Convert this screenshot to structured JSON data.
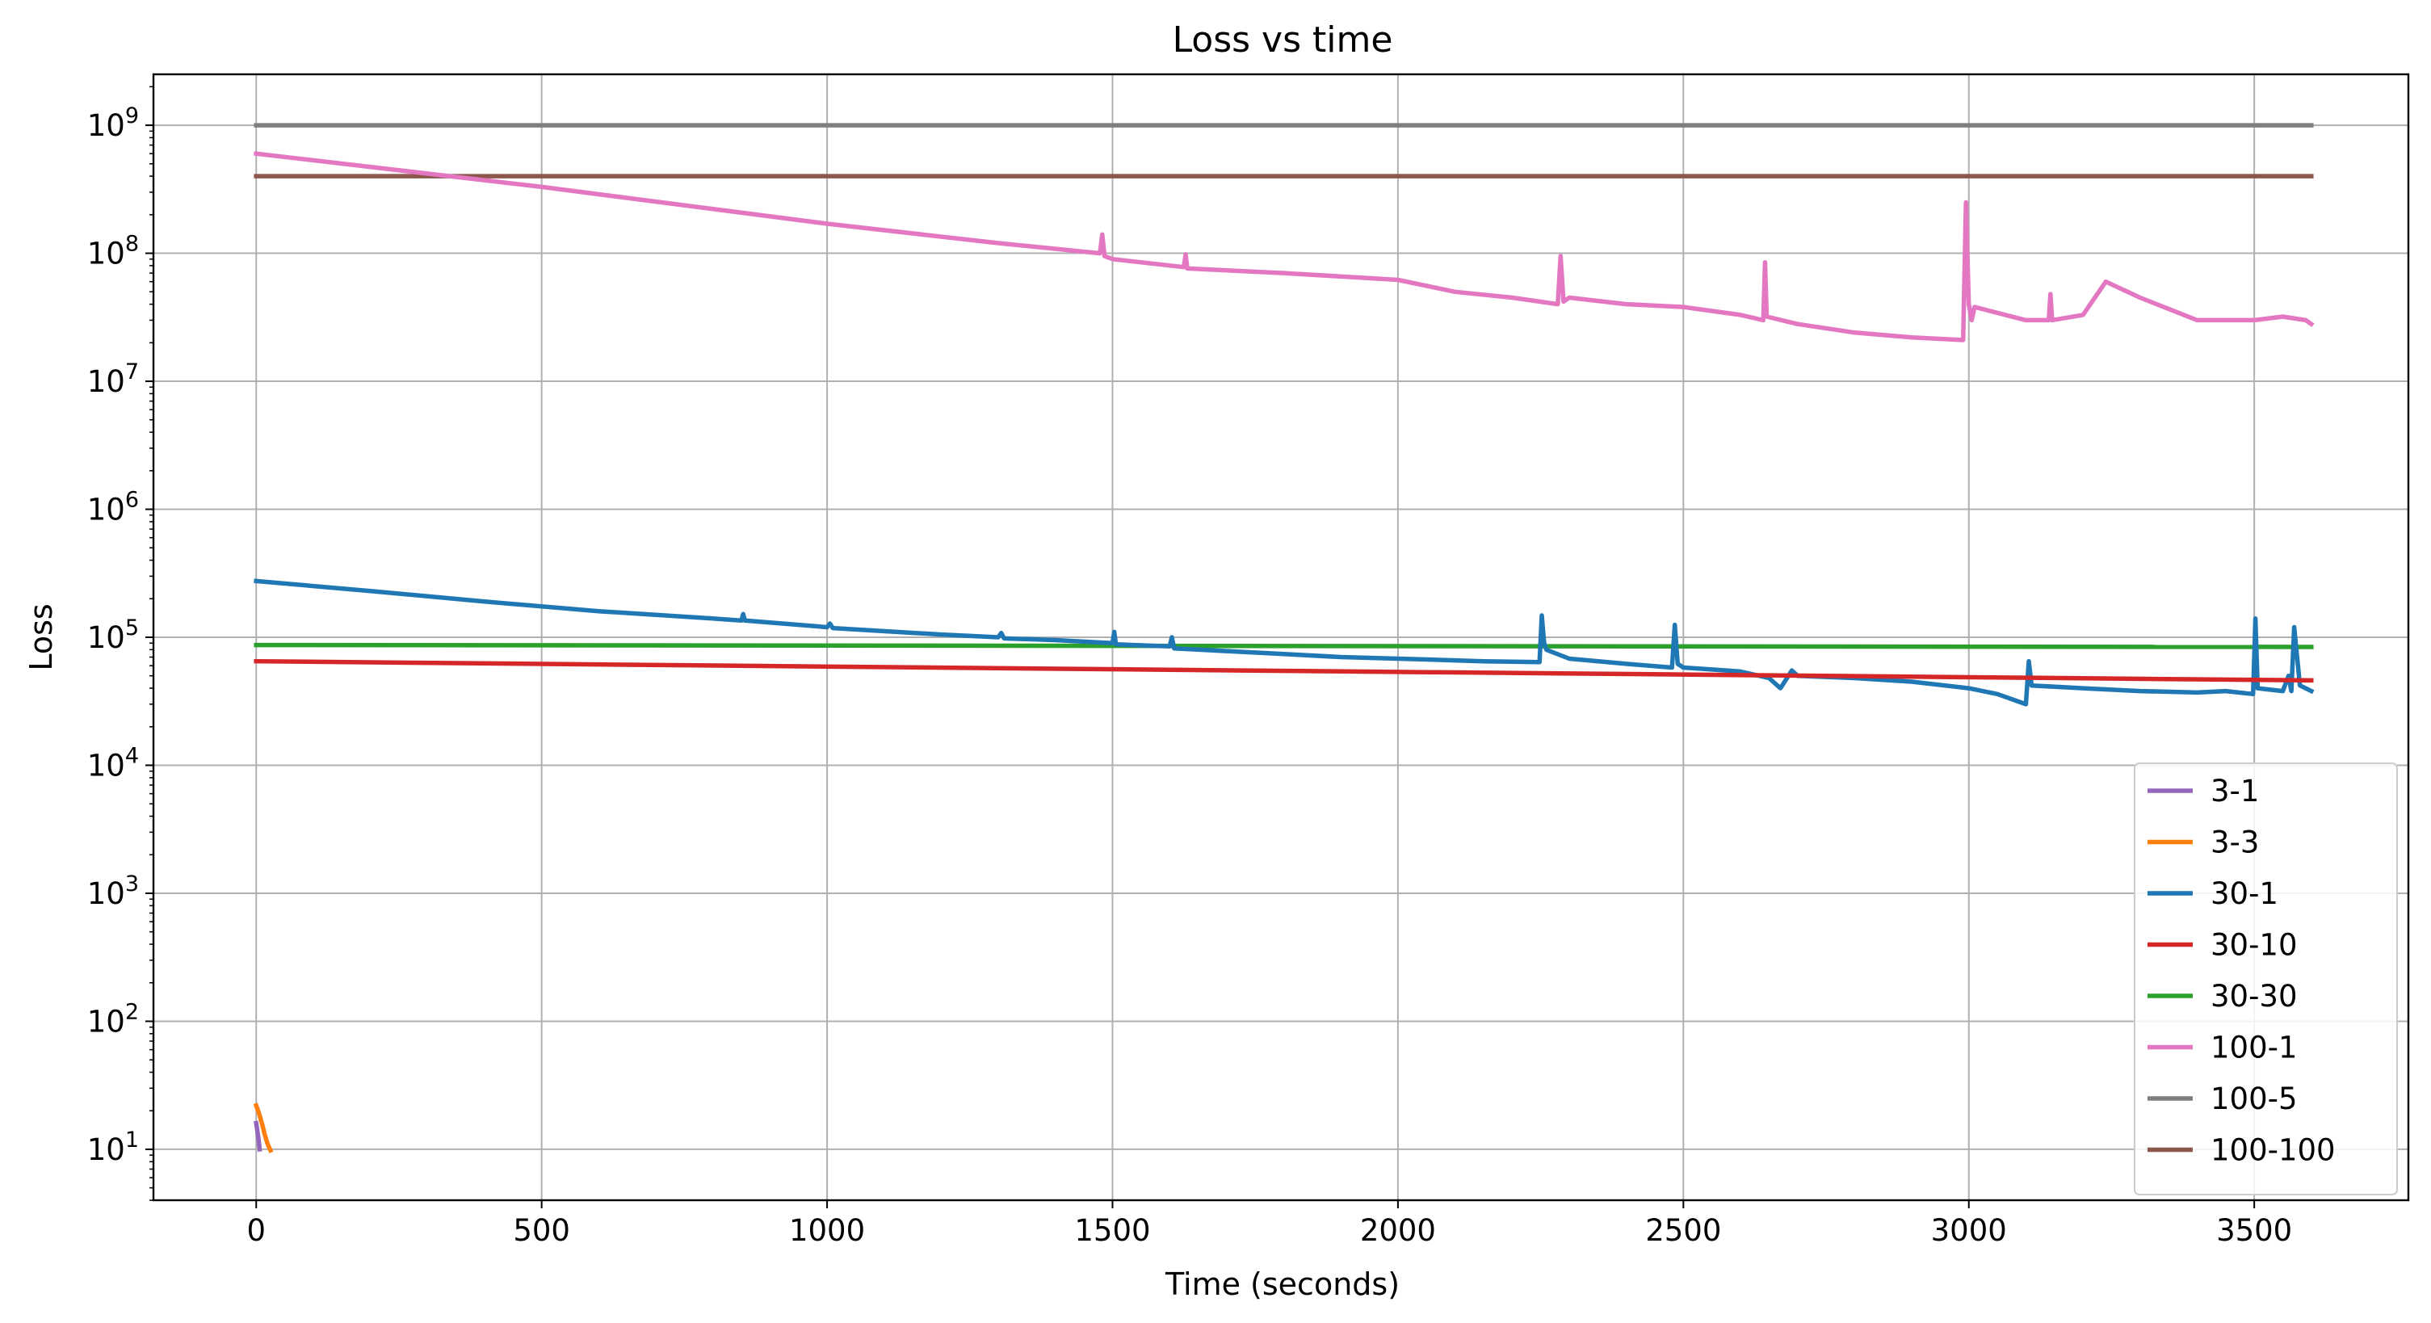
{
  "chart_data": {
    "type": "line",
    "title": "Loss vs time",
    "xlabel": "Time (seconds)",
    "ylabel": "Loss",
    "xlim": [
      -180,
      3770
    ],
    "ylim": [
      4,
      2500000000
    ],
    "yscale": "log",
    "x_ticks": [
      0,
      500,
      1000,
      1500,
      2000,
      2500,
      3000,
      3500
    ],
    "y_ticks": [
      {
        "value": 10,
        "base": "10",
        "exp": "1"
      },
      {
        "value": 100,
        "base": "10",
        "exp": "2"
      },
      {
        "value": 1000,
        "base": "10",
        "exp": "3"
      },
      {
        "value": 10000,
        "base": "10",
        "exp": "4"
      },
      {
        "value": 100000,
        "base": "10",
        "exp": "5"
      },
      {
        "value": 1000000,
        "base": "10",
        "exp": "6"
      },
      {
        "value": 10000000,
        "base": "10",
        "exp": "7"
      },
      {
        "value": 100000000,
        "base": "10",
        "exp": "8"
      },
      {
        "value": 1000000000,
        "base": "10",
        "exp": "9"
      }
    ],
    "grid": true,
    "legend_position": "lower-right",
    "series": [
      {
        "name": "3-1",
        "color": "#9467bd",
        "x": [
          0,
          2,
          4,
          6
        ],
        "y": [
          16,
          14,
          12,
          10
        ]
      },
      {
        "name": "3-3",
        "color": "#ff7f0e",
        "x": [
          0,
          5,
          10,
          15,
          20,
          25
        ],
        "y": [
          22,
          19,
          16,
          13,
          11,
          9.8
        ]
      },
      {
        "name": "30-1",
        "color": "#1f77b4",
        "x": [
          0,
          200,
          400,
          600,
          800,
          850,
          853,
          856,
          1000,
          1005,
          1010,
          1200,
          1300,
          1305,
          1310,
          1400,
          1500,
          1503,
          1506,
          1600,
          1604,
          1608,
          1700,
          1800,
          1900,
          2000,
          2100,
          2150,
          2248,
          2252,
          2256,
          2260,
          2300,
          2400,
          2480,
          2485,
          2490,
          2500,
          2550,
          2600,
          2650,
          2670,
          2690,
          2700,
          2800,
          2900,
          3000,
          3050,
          3100,
          3105,
          3110,
          3200,
          3300,
          3400,
          3450,
          3498,
          3502,
          3506,
          3550,
          3560,
          3565,
          3570,
          3580,
          3590,
          3600
        ],
        "y": [
          275000,
          230000,
          190000,
          160000,
          140000,
          135000,
          152000,
          135000,
          120000,
          128000,
          118000,
          105000,
          100000,
          108000,
          98000,
          95000,
          90000,
          110000,
          88000,
          85000,
          100000,
          82000,
          78000,
          74000,
          70000,
          68000,
          66000,
          65000,
          64000,
          148000,
          90000,
          80000,
          68000,
          62000,
          58000,
          125000,
          62000,
          58000,
          56000,
          54000,
          48000,
          40000,
          55000,
          50000,
          48000,
          45000,
          40000,
          36000,
          30000,
          65000,
          42000,
          40000,
          38000,
          37000,
          38000,
          36000,
          140000,
          40000,
          38000,
          50000,
          38000,
          120000,
          42000,
          40000,
          38000
        ]
      },
      {
        "name": "30-10",
        "color": "#d62728",
        "x": [
          0,
          3600
        ],
        "y": [
          65000,
          46000
        ]
      },
      {
        "name": "30-30",
        "color": "#2ca02c",
        "x": [
          0,
          3600
        ],
        "y": [
          87000,
          84000
        ]
      },
      {
        "name": "100-1",
        "color": "#e377c2",
        "x": [
          0,
          500,
          1000,
          1300,
          1478,
          1482,
          1486,
          1500,
          1625,
          1628,
          1631,
          1800,
          2000,
          2100,
          2200,
          2280,
          2285,
          2290,
          2300,
          2400,
          2500,
          2600,
          2640,
          2643,
          2646,
          2700,
          2800,
          2900,
          2990,
          2995,
          3000,
          3005,
          3010,
          3100,
          3140,
          3143,
          3146,
          3200,
          3240,
          3300,
          3400,
          3500,
          3550,
          3590,
          3600
        ],
        "y": [
          600000000,
          330000000,
          170000000,
          120000000,
          100000000,
          140000000,
          95000000,
          90000000,
          78000000,
          98000000,
          76000000,
          70000000,
          62000000,
          50000000,
          45000000,
          40000000,
          95000000,
          42000000,
          45000000,
          40000000,
          38000000,
          33000000,
          30000000,
          85000000,
          32000000,
          28000000,
          24000000,
          22000000,
          21000000,
          250000000,
          40000000,
          30000000,
          38000000,
          30000000,
          30000000,
          48000000,
          30000000,
          33000000,
          60000000,
          45000000,
          30000000,
          30000000,
          32000000,
          30000000,
          28000000
        ]
      },
      {
        "name": "100-5",
        "color": "#7f7f7f",
        "x": [
          0,
          3600
        ],
        "y": [
          1000000000,
          1000000000
        ]
      },
      {
        "name": "100-100",
        "color": "#8c564b",
        "x": [
          0,
          3600
        ],
        "y": [
          400000000,
          400000000
        ]
      }
    ]
  }
}
